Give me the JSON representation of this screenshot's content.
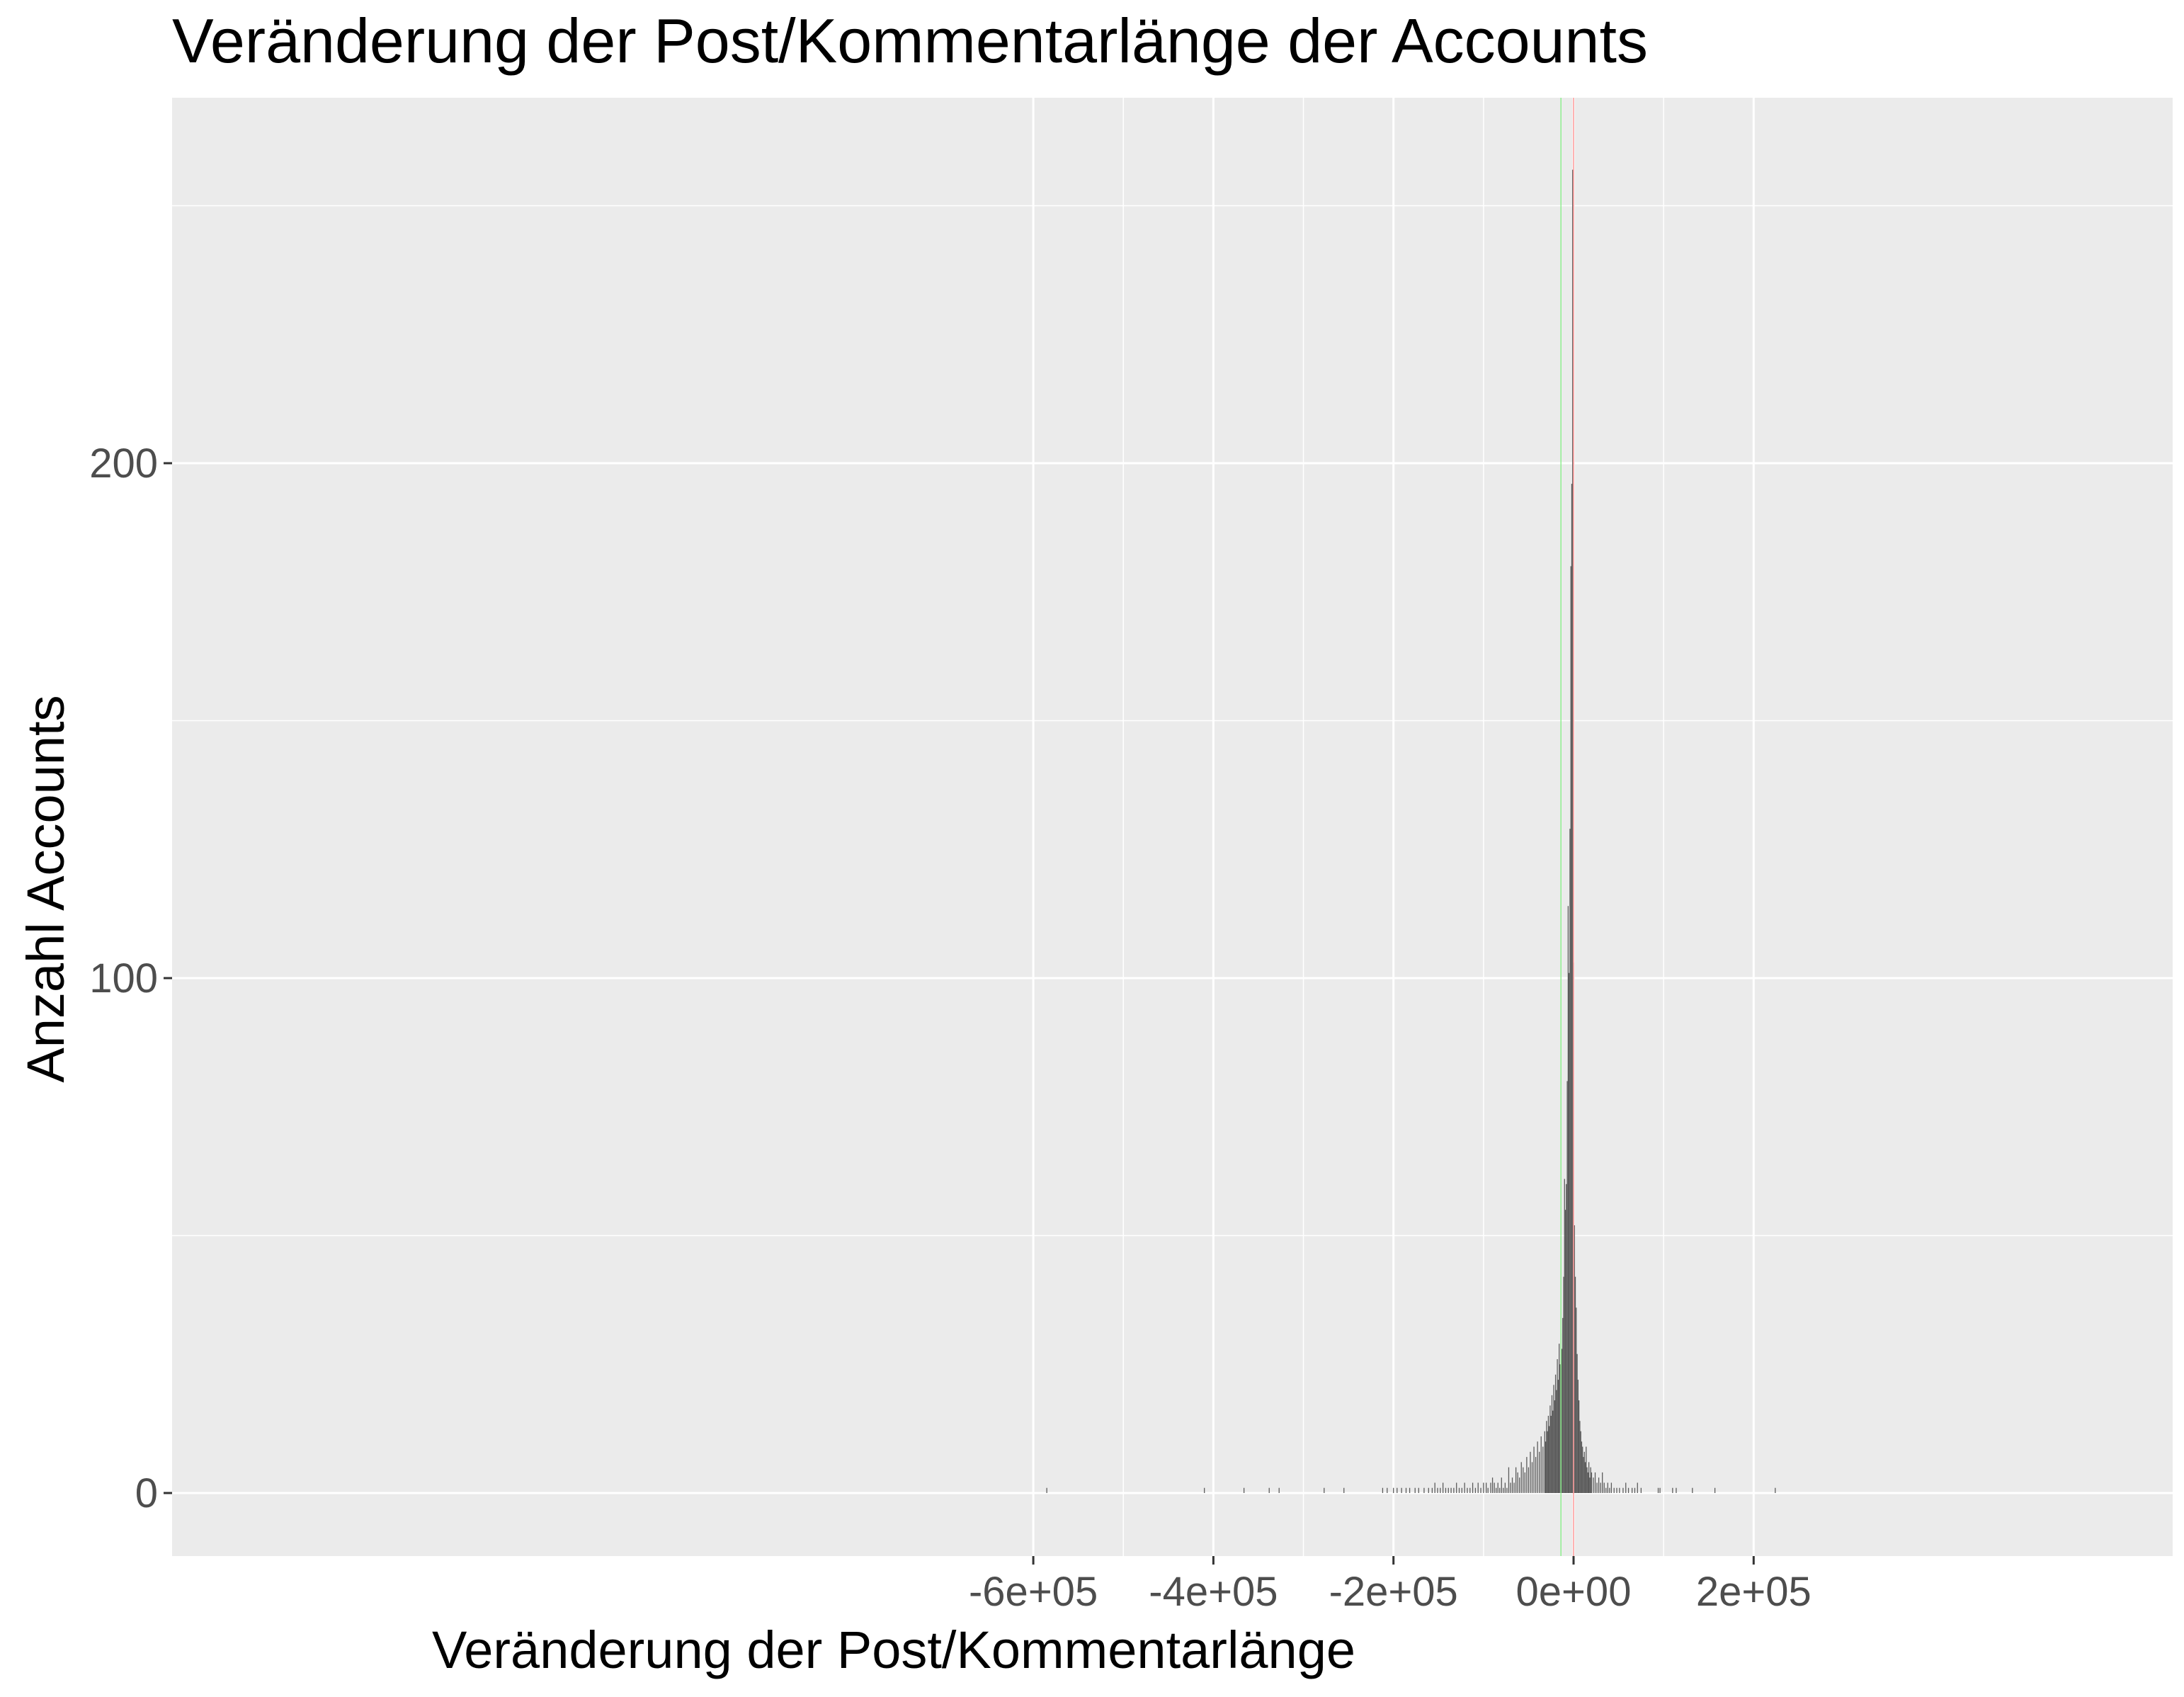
{
  "chart_data": {
    "type": "bar",
    "title": "Veränderung der Post/Kommentarlänge der Accounts",
    "xlabel": "Veränderung der Post/Kommentarlänge",
    "ylabel": "Anzahl Accounts",
    "xlim": [
      -628000,
      265000
    ],
    "ylim": [
      -13,
      258
    ],
    "x_ticks": [
      {
        "value": -600000,
        "label": "-6e+05"
      },
      {
        "value": -400000,
        "label": "-4e+05"
      },
      {
        "value": -200000,
        "label": "-2e+05"
      },
      {
        "value": 0,
        "label": "0e+00"
      },
      {
        "value": 200000,
        "label": "2e+05"
      }
    ],
    "y_ticks": [
      {
        "value": 0,
        "label": "0"
      },
      {
        "value": 100,
        "label": "100"
      },
      {
        "value": 200,
        "label": "200"
      }
    ],
    "x_minor_gridlines": [
      -500000,
      -300000,
      -100000,
      100000
    ],
    "y_minor_gridlines": [
      50,
      150,
      250
    ],
    "grid": true,
    "legend": "none",
    "bin_width": 1000,
    "reference_lines": [
      {
        "x": -14000,
        "color": "#90ee90"
      },
      {
        "x": 0,
        "color": "#ff9999"
      }
    ],
    "colors": {
      "panel": "#ebebeb",
      "grid": "#ffffff",
      "bars": "#595959",
      "tick_labels": "#4d4d4d"
    },
    "bins": [
      {
        "x": -585000,
        "count": 1
      },
      {
        "x": -410000,
        "count": 1
      },
      {
        "x": -366000,
        "count": 1
      },
      {
        "x": -338000,
        "count": 1
      },
      {
        "x": -327000,
        "count": 1
      },
      {
        "x": -277000,
        "count": 1
      },
      {
        "x": -255000,
        "count": 1
      },
      {
        "x": -212000,
        "count": 1
      },
      {
        "x": -207000,
        "count": 1
      },
      {
        "x": -200000,
        "count": 1
      },
      {
        "x": -196000,
        "count": 1
      },
      {
        "x": -191000,
        "count": 1
      },
      {
        "x": -186000,
        "count": 1
      },
      {
        "x": -182000,
        "count": 1
      },
      {
        "x": -176000,
        "count": 1
      },
      {
        "x": -172000,
        "count": 1
      },
      {
        "x": -166000,
        "count": 1
      },
      {
        "x": -161000,
        "count": 1
      },
      {
        "x": -157000,
        "count": 1
      },
      {
        "x": -154000,
        "count": 2
      },
      {
        "x": -151000,
        "count": 1
      },
      {
        "x": -148000,
        "count": 1
      },
      {
        "x": -145000,
        "count": 2
      },
      {
        "x": -142000,
        "count": 1
      },
      {
        "x": -139000,
        "count": 1
      },
      {
        "x": -136000,
        "count": 1
      },
      {
        "x": -133000,
        "count": 1
      },
      {
        "x": -130000,
        "count": 2
      },
      {
        "x": -127000,
        "count": 1
      },
      {
        "x": -124000,
        "count": 1
      },
      {
        "x": -121000,
        "count": 2
      },
      {
        "x": -118000,
        "count": 1
      },
      {
        "x": -115000,
        "count": 1
      },
      {
        "x": -112000,
        "count": 2
      },
      {
        "x": -109000,
        "count": 1
      },
      {
        "x": -106000,
        "count": 2
      },
      {
        "x": -103000,
        "count": 1
      },
      {
        "x": -100000,
        "count": 2
      },
      {
        "x": -97000,
        "count": 2
      },
      {
        "x": -95000,
        "count": 1
      },
      {
        "x": -92000,
        "count": 2
      },
      {
        "x": -90000,
        "count": 3
      },
      {
        "x": -88000,
        "count": 2
      },
      {
        "x": -86000,
        "count": 1
      },
      {
        "x": -84000,
        "count": 2
      },
      {
        "x": -82000,
        "count": 1
      },
      {
        "x": -80000,
        "count": 3
      },
      {
        "x": -78000,
        "count": 1
      },
      {
        "x": -76000,
        "count": 2
      },
      {
        "x": -74000,
        "count": 1
      },
      {
        "x": -72000,
        "count": 5
      },
      {
        "x": -70000,
        "count": 2
      },
      {
        "x": -68000,
        "count": 3
      },
      {
        "x": -66000,
        "count": 2
      },
      {
        "x": -64000,
        "count": 5
      },
      {
        "x": -62000,
        "count": 4
      },
      {
        "x": -60000,
        "count": 3
      },
      {
        "x": -58000,
        "count": 6
      },
      {
        "x": -56000,
        "count": 5
      },
      {
        "x": -54000,
        "count": 4
      },
      {
        "x": -52000,
        "count": 7
      },
      {
        "x": -50000,
        "count": 5
      },
      {
        "x": -48000,
        "count": 8
      },
      {
        "x": -46000,
        "count": 6
      },
      {
        "x": -44000,
        "count": 9
      },
      {
        "x": -42000,
        "count": 7
      },
      {
        "x": -40000,
        "count": 10
      },
      {
        "x": -38000,
        "count": 8
      },
      {
        "x": -36000,
        "count": 11
      },
      {
        "x": -34000,
        "count": 9
      },
      {
        "x": -32000,
        "count": 12
      },
      {
        "x": -31000,
        "count": 10
      },
      {
        "x": -30000,
        "count": 14
      },
      {
        "x": -29000,
        "count": 12
      },
      {
        "x": -28000,
        "count": 15
      },
      {
        "x": -27000,
        "count": 13
      },
      {
        "x": -26000,
        "count": 17
      },
      {
        "x": -25000,
        "count": 15
      },
      {
        "x": -24000,
        "count": 19
      },
      {
        "x": -23000,
        "count": 16
      },
      {
        "x": -22000,
        "count": 21
      },
      {
        "x": -21000,
        "count": 18
      },
      {
        "x": -20000,
        "count": 23
      },
      {
        "x": -19000,
        "count": 20
      },
      {
        "x": -18000,
        "count": 26
      },
      {
        "x": -17000,
        "count": 22
      },
      {
        "x": -16000,
        "count": 29
      },
      {
        "x": -15000,
        "count": 25
      },
      {
        "x": -14000,
        "count": 31
      },
      {
        "x": -13000,
        "count": 28
      },
      {
        "x": -12000,
        "count": 34
      },
      {
        "x": -11000,
        "count": 42
      },
      {
        "x": -10000,
        "count": 61
      },
      {
        "x": -9000,
        "count": 55
      },
      {
        "x": -8000,
        "count": 60
      },
      {
        "x": -7000,
        "count": 80
      },
      {
        "x": -6000,
        "count": 114
      },
      {
        "x": -5000,
        "count": 101
      },
      {
        "x": -4000,
        "count": 129
      },
      {
        "x": -3000,
        "count": 180
      },
      {
        "x": -2000,
        "count": 196
      },
      {
        "x": -1000,
        "count": 257
      },
      {
        "x": 0,
        "count": 103
      },
      {
        "x": 1000,
        "count": 52
      },
      {
        "x": 2000,
        "count": 42
      },
      {
        "x": 3000,
        "count": 36
      },
      {
        "x": 4000,
        "count": 27
      },
      {
        "x": 5000,
        "count": 22
      },
      {
        "x": 6000,
        "count": 18
      },
      {
        "x": 7000,
        "count": 14
      },
      {
        "x": 8000,
        "count": 12
      },
      {
        "x": 9000,
        "count": 10
      },
      {
        "x": 10000,
        "count": 9
      },
      {
        "x": 11000,
        "count": 7
      },
      {
        "x": 12000,
        "count": 8
      },
      {
        "x": 13000,
        "count": 6
      },
      {
        "x": 14000,
        "count": 9
      },
      {
        "x": 15000,
        "count": 5
      },
      {
        "x": 16000,
        "count": 4
      },
      {
        "x": 17000,
        "count": 6
      },
      {
        "x": 18000,
        "count": 3
      },
      {
        "x": 19000,
        "count": 5
      },
      {
        "x": 20000,
        "count": 4
      },
      {
        "x": 22000,
        "count": 3
      },
      {
        "x": 24000,
        "count": 4
      },
      {
        "x": 26000,
        "count": 2
      },
      {
        "x": 28000,
        "count": 3
      },
      {
        "x": 30000,
        "count": 2
      },
      {
        "x": 32000,
        "count": 4
      },
      {
        "x": 34000,
        "count": 2
      },
      {
        "x": 36000,
        "count": 1
      },
      {
        "x": 38000,
        "count": 2
      },
      {
        "x": 40000,
        "count": 1
      },
      {
        "x": 42000,
        "count": 2
      },
      {
        "x": 45000,
        "count": 1
      },
      {
        "x": 48000,
        "count": 1
      },
      {
        "x": 51000,
        "count": 1
      },
      {
        "x": 55000,
        "count": 1
      },
      {
        "x": 58000,
        "count": 2
      },
      {
        "x": 61000,
        "count": 1
      },
      {
        "x": 65000,
        "count": 1
      },
      {
        "x": 68000,
        "count": 1
      },
      {
        "x": 71000,
        "count": 2
      },
      {
        "x": 75000,
        "count": 1
      },
      {
        "x": 94000,
        "count": 1
      },
      {
        "x": 96000,
        "count": 1
      },
      {
        "x": 110000,
        "count": 1
      },
      {
        "x": 114000,
        "count": 1
      },
      {
        "x": 132000,
        "count": 1
      },
      {
        "x": 157000,
        "count": 1
      },
      {
        "x": 224000,
        "count": 1
      }
    ]
  }
}
